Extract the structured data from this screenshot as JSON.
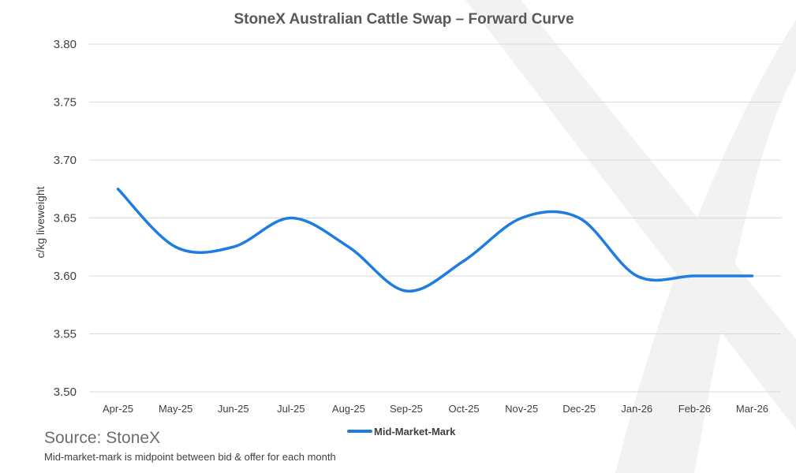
{
  "chart_data": {
    "type": "line",
    "title": "StoneX Australian Cattle Swap – Forward Curve",
    "ylabel": "c/kg liveweight",
    "xlabel": "",
    "ylim": [
      3.5,
      3.8
    ],
    "yticks": [
      "3.50",
      "3.55",
      "3.60",
      "3.65",
      "3.70",
      "3.75",
      "3.80"
    ],
    "categories": [
      "Apr-25",
      "May-25",
      "Jun-25",
      "Jul-25",
      "Aug-25",
      "Sep-25",
      "Oct-25",
      "Nov-25",
      "Dec-25",
      "Jan-26",
      "Feb-26",
      "Mar-26"
    ],
    "series": [
      {
        "name": "Mid-Market-Mark",
        "color": "#1f7ce0",
        "values": [
          3.675,
          3.625,
          3.625,
          3.65,
          3.625,
          3.587,
          3.613,
          3.65,
          3.65,
          3.6,
          3.6,
          3.6
        ]
      }
    ],
    "grid": true,
    "legend": "bottom-center"
  },
  "watermark": {
    "name": "StoneX X logo",
    "color": "#f2f2f2"
  },
  "footer": {
    "source": "Source: StoneX",
    "note": "Mid-market-mark is midpoint between bid & offer for each month"
  }
}
